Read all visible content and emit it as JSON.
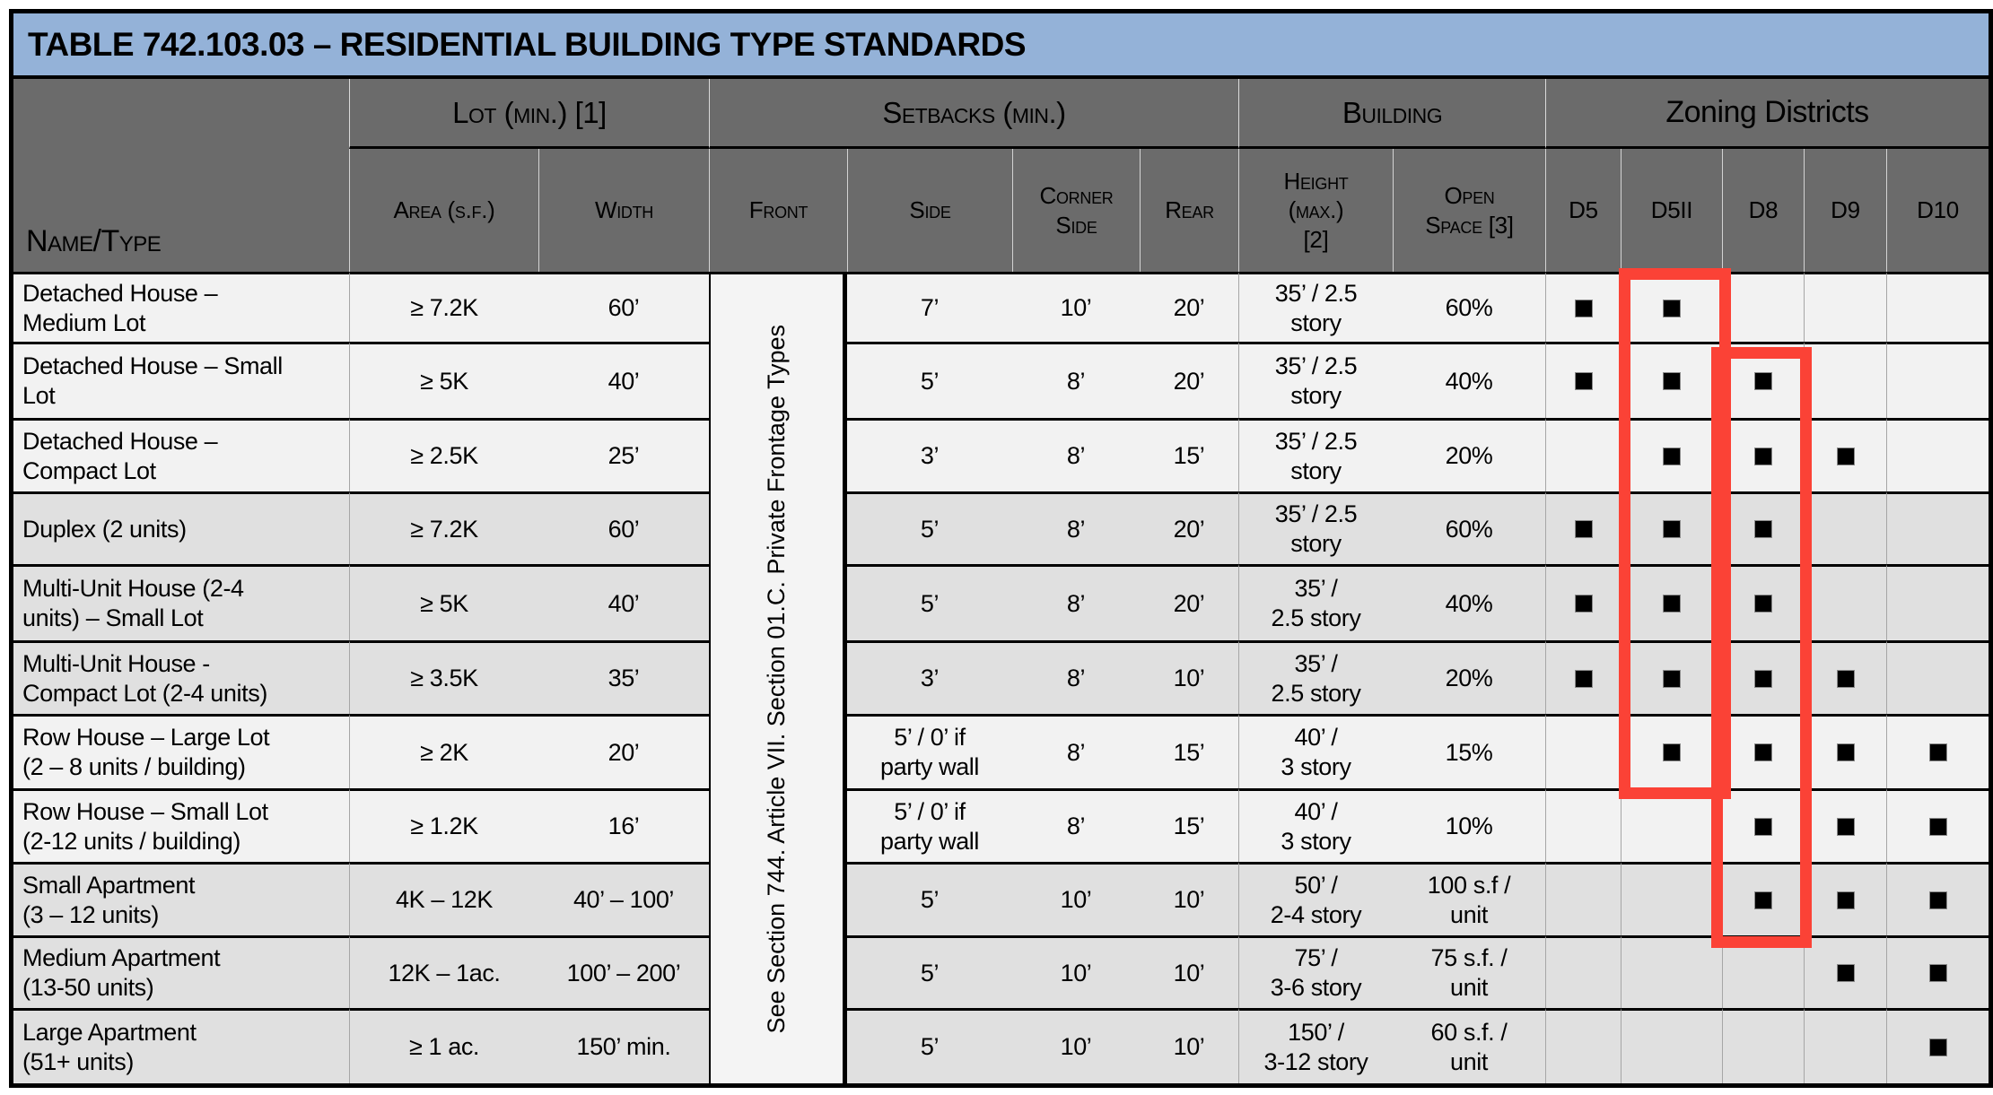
{
  "title": "TABLE 742.103.03 – RESIDENTIAL BUILDING TYPE STANDARDS",
  "header": {
    "name_col": "Name/Type",
    "groups": {
      "lot": "Lot (min.) [1]",
      "setbacks": "Setbacks (min.)",
      "building": "Building",
      "zoning": "Zoning Districts"
    },
    "sub_columns": [
      "Area (s.f.)",
      "Width",
      "Front",
      "Side",
      "Corner\nSide",
      "Rear",
      "Height\n(max.)\n[2]",
      "Open\nSpace [3]"
    ],
    "districts": [
      "D5",
      "D5II",
      "D8",
      "D9",
      "D10"
    ]
  },
  "front_note": "See Section 744. Article VII. Section 01.C. Private Frontage Types",
  "rows": [
    {
      "name": "Detached House –\nMedium Lot",
      "area": "≥ 7.2K",
      "width": "60’",
      "side": "7’",
      "corner": "10’",
      "rear": "20’",
      "height": "35’ / 2.5\nstory",
      "open": "60%",
      "marks": [
        true,
        true,
        false,
        false,
        false
      ]
    },
    {
      "name": "Detached House – Small\nLot",
      "area": "≥ 5K",
      "width": "40’",
      "side": "5’",
      "corner": "8’",
      "rear": "20’",
      "height": "35’ / 2.5\nstory",
      "open": "40%",
      "marks": [
        true,
        true,
        true,
        false,
        false
      ]
    },
    {
      "name": "Detached House –\nCompact Lot",
      "area": "≥ 2.5K",
      "width": "25’",
      "side": "3’",
      "corner": "8’",
      "rear": "15’",
      "height": "35’ / 2.5\nstory",
      "open": "20%",
      "marks": [
        false,
        true,
        true,
        true,
        false
      ]
    },
    {
      "name": "Duplex (2 units)",
      "area": "≥ 7.2K",
      "width": "60’",
      "side": "5’",
      "corner": "8’",
      "rear": "20’",
      "height": "35’ / 2.5\nstory",
      "open": "60%",
      "marks": [
        true,
        true,
        true,
        false,
        false
      ]
    },
    {
      "name": "Multi-Unit House (2-4\nunits) – Small Lot",
      "area": "≥ 5K",
      "width": "40’",
      "side": "5’",
      "corner": "8’",
      "rear": "20’",
      "height": "35’ /\n2.5 story",
      "open": "40%",
      "marks": [
        true,
        true,
        true,
        false,
        false
      ]
    },
    {
      "name": "Multi-Unit House -\nCompact Lot (2-4 units)",
      "area": "≥ 3.5K",
      "width": "35’",
      "side": "3’",
      "corner": "8’",
      "rear": "10’",
      "height": "35’ /\n2.5 story",
      "open": "20%",
      "marks": [
        true,
        true,
        true,
        true,
        false
      ]
    },
    {
      "name": "Row House – Large Lot\n(2 – 8 units / building)",
      "area": "≥ 2K",
      "width": "20’",
      "side": "5’ / 0’ if\nparty wall",
      "corner": "8’",
      "rear": "15’",
      "height": "40’ /\n3 story",
      "open": "15%",
      "marks": [
        false,
        true,
        true,
        true,
        true
      ]
    },
    {
      "name": "Row House – Small Lot\n(2-12 units / building)",
      "area": "≥ 1.2K",
      "width": "16’",
      "side": "5’ / 0’ if\nparty wall",
      "corner": "8’",
      "rear": "15’",
      "height": "40’ /\n3 story",
      "open": "10%",
      "marks": [
        false,
        false,
        true,
        true,
        true
      ]
    },
    {
      "name": "Small Apartment\n(3 – 12 units)",
      "area": "4K – 12K",
      "width": "40’ – 100’",
      "side": "5’",
      "corner": "10’",
      "rear": "10’",
      "height": "50’ /\n2-4 story",
      "open": "100 s.f /\nunit",
      "marks": [
        false,
        false,
        true,
        true,
        true
      ]
    },
    {
      "name": "Medium Apartment\n(13-50 units)",
      "area": "12K – 1ac.",
      "width": "100’ – 200’",
      "side": "5’",
      "corner": "10’",
      "rear": "10’",
      "height": "75’ /\n3-6 story",
      "open": "75 s.f. /\nunit",
      "marks": [
        false,
        false,
        false,
        true,
        true
      ]
    },
    {
      "name": "Large Apartment\n(51+ units)",
      "area": "≥ 1 ac.",
      "width": "150’ min.",
      "side": "5’",
      "corner": "10’",
      "rear": "10’",
      "height": "150’ /\n3-12 story",
      "open": "60 s.f. /\nunit",
      "marks": [
        false,
        false,
        false,
        false,
        true
      ]
    }
  ],
  "annotations": {
    "highlight_color": "#fb4236",
    "boxes": [
      {
        "column": "D5II",
        "row_start": 1,
        "row_end": 7
      },
      {
        "column": "D8",
        "row_start": 2,
        "row_end": 9
      }
    ]
  },
  "colors": {
    "title_bg": "#94b2d8",
    "header_bg": "#6b6b6b",
    "row_light": "#f2f2f2",
    "row_dark": "#e0e0e0",
    "frontage_bg": "#f4f4f4",
    "highlight": "#fb4236",
    "grid_line": "#a6a6a6"
  }
}
